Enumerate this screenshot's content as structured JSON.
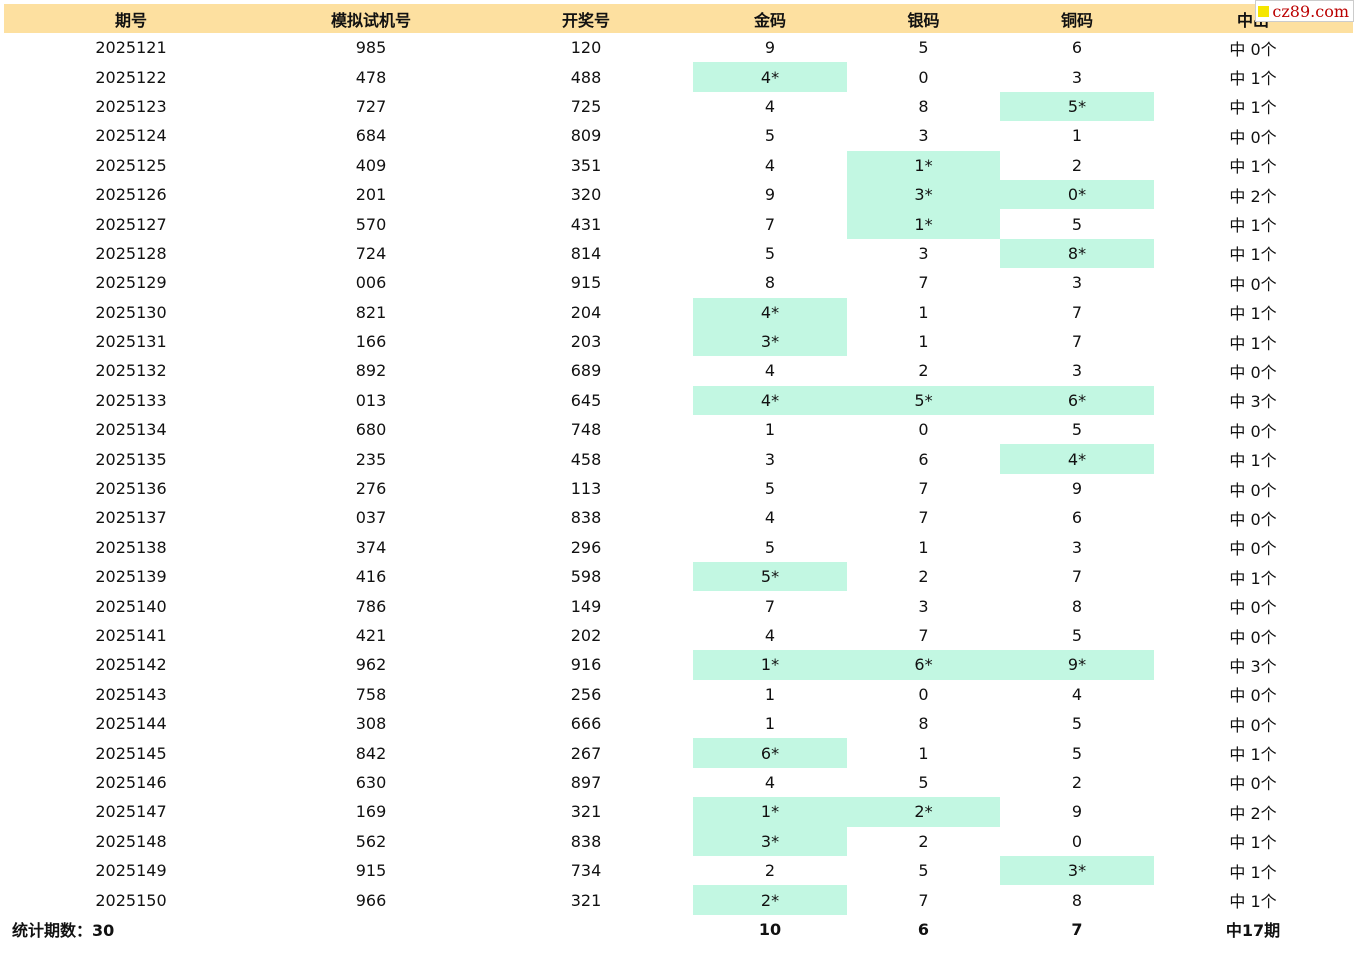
{
  "header": [
    "期号",
    "模拟试机号",
    "开奖号",
    "金码",
    "银码",
    "铜码",
    "中出"
  ],
  "rows": [
    {
      "issue": "2025121",
      "sim": "985",
      "draw": "120",
      "gold": "9",
      "silver": "5",
      "copper": "6",
      "hits": "中 0个",
      "g": false,
      "s": false,
      "c": false
    },
    {
      "issue": "2025122",
      "sim": "478",
      "draw": "488",
      "gold": "4*",
      "silver": "0",
      "copper": "3",
      "hits": "中 1个",
      "g": true,
      "s": false,
      "c": false
    },
    {
      "issue": "2025123",
      "sim": "727",
      "draw": "725",
      "gold": "4",
      "silver": "8",
      "copper": "5*",
      "hits": "中 1个",
      "g": false,
      "s": false,
      "c": true
    },
    {
      "issue": "2025124",
      "sim": "684",
      "draw": "809",
      "gold": "5",
      "silver": "3",
      "copper": "1",
      "hits": "中 0个",
      "g": false,
      "s": false,
      "c": false
    },
    {
      "issue": "2025125",
      "sim": "409",
      "draw": "351",
      "gold": "4",
      "silver": "1*",
      "copper": "2",
      "hits": "中 1个",
      "g": false,
      "s": true,
      "c": false
    },
    {
      "issue": "2025126",
      "sim": "201",
      "draw": "320",
      "gold": "9",
      "silver": "3*",
      "copper": "0*",
      "hits": "中 2个",
      "g": false,
      "s": true,
      "c": true
    },
    {
      "issue": "2025127",
      "sim": "570",
      "draw": "431",
      "gold": "7",
      "silver": "1*",
      "copper": "5",
      "hits": "中 1个",
      "g": false,
      "s": true,
      "c": false
    },
    {
      "issue": "2025128",
      "sim": "724",
      "draw": "814",
      "gold": "5",
      "silver": "3",
      "copper": "8*",
      "hits": "中 1个",
      "g": false,
      "s": false,
      "c": true
    },
    {
      "issue": "2025129",
      "sim": "006",
      "draw": "915",
      "gold": "8",
      "silver": "7",
      "copper": "3",
      "hits": "中 0个",
      "g": false,
      "s": false,
      "c": false
    },
    {
      "issue": "2025130",
      "sim": "821",
      "draw": "204",
      "gold": "4*",
      "silver": "1",
      "copper": "7",
      "hits": "中 1个",
      "g": true,
      "s": false,
      "c": false
    },
    {
      "issue": "2025131",
      "sim": "166",
      "draw": "203",
      "gold": "3*",
      "silver": "1",
      "copper": "7",
      "hits": "中 1个",
      "g": true,
      "s": false,
      "c": false
    },
    {
      "issue": "2025132",
      "sim": "892",
      "draw": "689",
      "gold": "4",
      "silver": "2",
      "copper": "3",
      "hits": "中 0个",
      "g": false,
      "s": false,
      "c": false
    },
    {
      "issue": "2025133",
      "sim": "013",
      "draw": "645",
      "gold": "4*",
      "silver": "5*",
      "copper": "6*",
      "hits": "中 3个",
      "g": true,
      "s": true,
      "c": true
    },
    {
      "issue": "2025134",
      "sim": "680",
      "draw": "748",
      "gold": "1",
      "silver": "0",
      "copper": "5",
      "hits": "中 0个",
      "g": false,
      "s": false,
      "c": false
    },
    {
      "issue": "2025135",
      "sim": "235",
      "draw": "458",
      "gold": "3",
      "silver": "6",
      "copper": "4*",
      "hits": "中 1个",
      "g": false,
      "s": false,
      "c": true
    },
    {
      "issue": "2025136",
      "sim": "276",
      "draw": "113",
      "gold": "5",
      "silver": "7",
      "copper": "9",
      "hits": "中 0个",
      "g": false,
      "s": false,
      "c": false
    },
    {
      "issue": "2025137",
      "sim": "037",
      "draw": "838",
      "gold": "4",
      "silver": "7",
      "copper": "6",
      "hits": "中 0个",
      "g": false,
      "s": false,
      "c": false
    },
    {
      "issue": "2025138",
      "sim": "374",
      "draw": "296",
      "gold": "5",
      "silver": "1",
      "copper": "3",
      "hits": "中 0个",
      "g": false,
      "s": false,
      "c": false
    },
    {
      "issue": "2025139",
      "sim": "416",
      "draw": "598",
      "gold": "5*",
      "silver": "2",
      "copper": "7",
      "hits": "中 1个",
      "g": true,
      "s": false,
      "c": false
    },
    {
      "issue": "2025140",
      "sim": "786",
      "draw": "149",
      "gold": "7",
      "silver": "3",
      "copper": "8",
      "hits": "中 0个",
      "g": false,
      "s": false,
      "c": false
    },
    {
      "issue": "2025141",
      "sim": "421",
      "draw": "202",
      "gold": "4",
      "silver": "7",
      "copper": "5",
      "hits": "中 0个",
      "g": false,
      "s": false,
      "c": false
    },
    {
      "issue": "2025142",
      "sim": "962",
      "draw": "916",
      "gold": "1*",
      "silver": "6*",
      "copper": "9*",
      "hits": "中 3个",
      "g": true,
      "s": true,
      "c": true
    },
    {
      "issue": "2025143",
      "sim": "758",
      "draw": "256",
      "gold": "1",
      "silver": "0",
      "copper": "4",
      "hits": "中 0个",
      "g": false,
      "s": false,
      "c": false
    },
    {
      "issue": "2025144",
      "sim": "308",
      "draw": "666",
      "gold": "1",
      "silver": "8",
      "copper": "5",
      "hits": "中 0个",
      "g": false,
      "s": false,
      "c": false
    },
    {
      "issue": "2025145",
      "sim": "842",
      "draw": "267",
      "gold": "6*",
      "silver": "1",
      "copper": "5",
      "hits": "中 1个",
      "g": true,
      "s": false,
      "c": false
    },
    {
      "issue": "2025146",
      "sim": "630",
      "draw": "897",
      "gold": "4",
      "silver": "5",
      "copper": "2",
      "hits": "中 0个",
      "g": false,
      "s": false,
      "c": false
    },
    {
      "issue": "2025147",
      "sim": "169",
      "draw": "321",
      "gold": "1*",
      "silver": "2*",
      "copper": "9",
      "hits": "中 2个",
      "g": true,
      "s": true,
      "c": false
    },
    {
      "issue": "2025148",
      "sim": "562",
      "draw": "838",
      "gold": "3*",
      "silver": "2",
      "copper": "0",
      "hits": "中 1个",
      "g": true,
      "s": false,
      "c": false
    },
    {
      "issue": "2025149",
      "sim": "915",
      "draw": "734",
      "gold": "2",
      "silver": "5",
      "copper": "3*",
      "hits": "中 1个",
      "g": false,
      "s": false,
      "c": true
    },
    {
      "issue": "2025150",
      "sim": "966",
      "draw": "321",
      "gold": "2*",
      "silver": "7",
      "copper": "8",
      "hits": "中 1个",
      "g": true,
      "s": false,
      "c": false
    }
  ],
  "footer": {
    "label": "统计期数：30",
    "gold": "10",
    "silver": "6",
    "copper": "7",
    "hits": "中17期"
  },
  "watermark": "cz89.com",
  "colors": {
    "header_bg": "#fde0a0",
    "hit_bg": "#c2f7e2",
    "watermark_square": "#f5e600"
  }
}
